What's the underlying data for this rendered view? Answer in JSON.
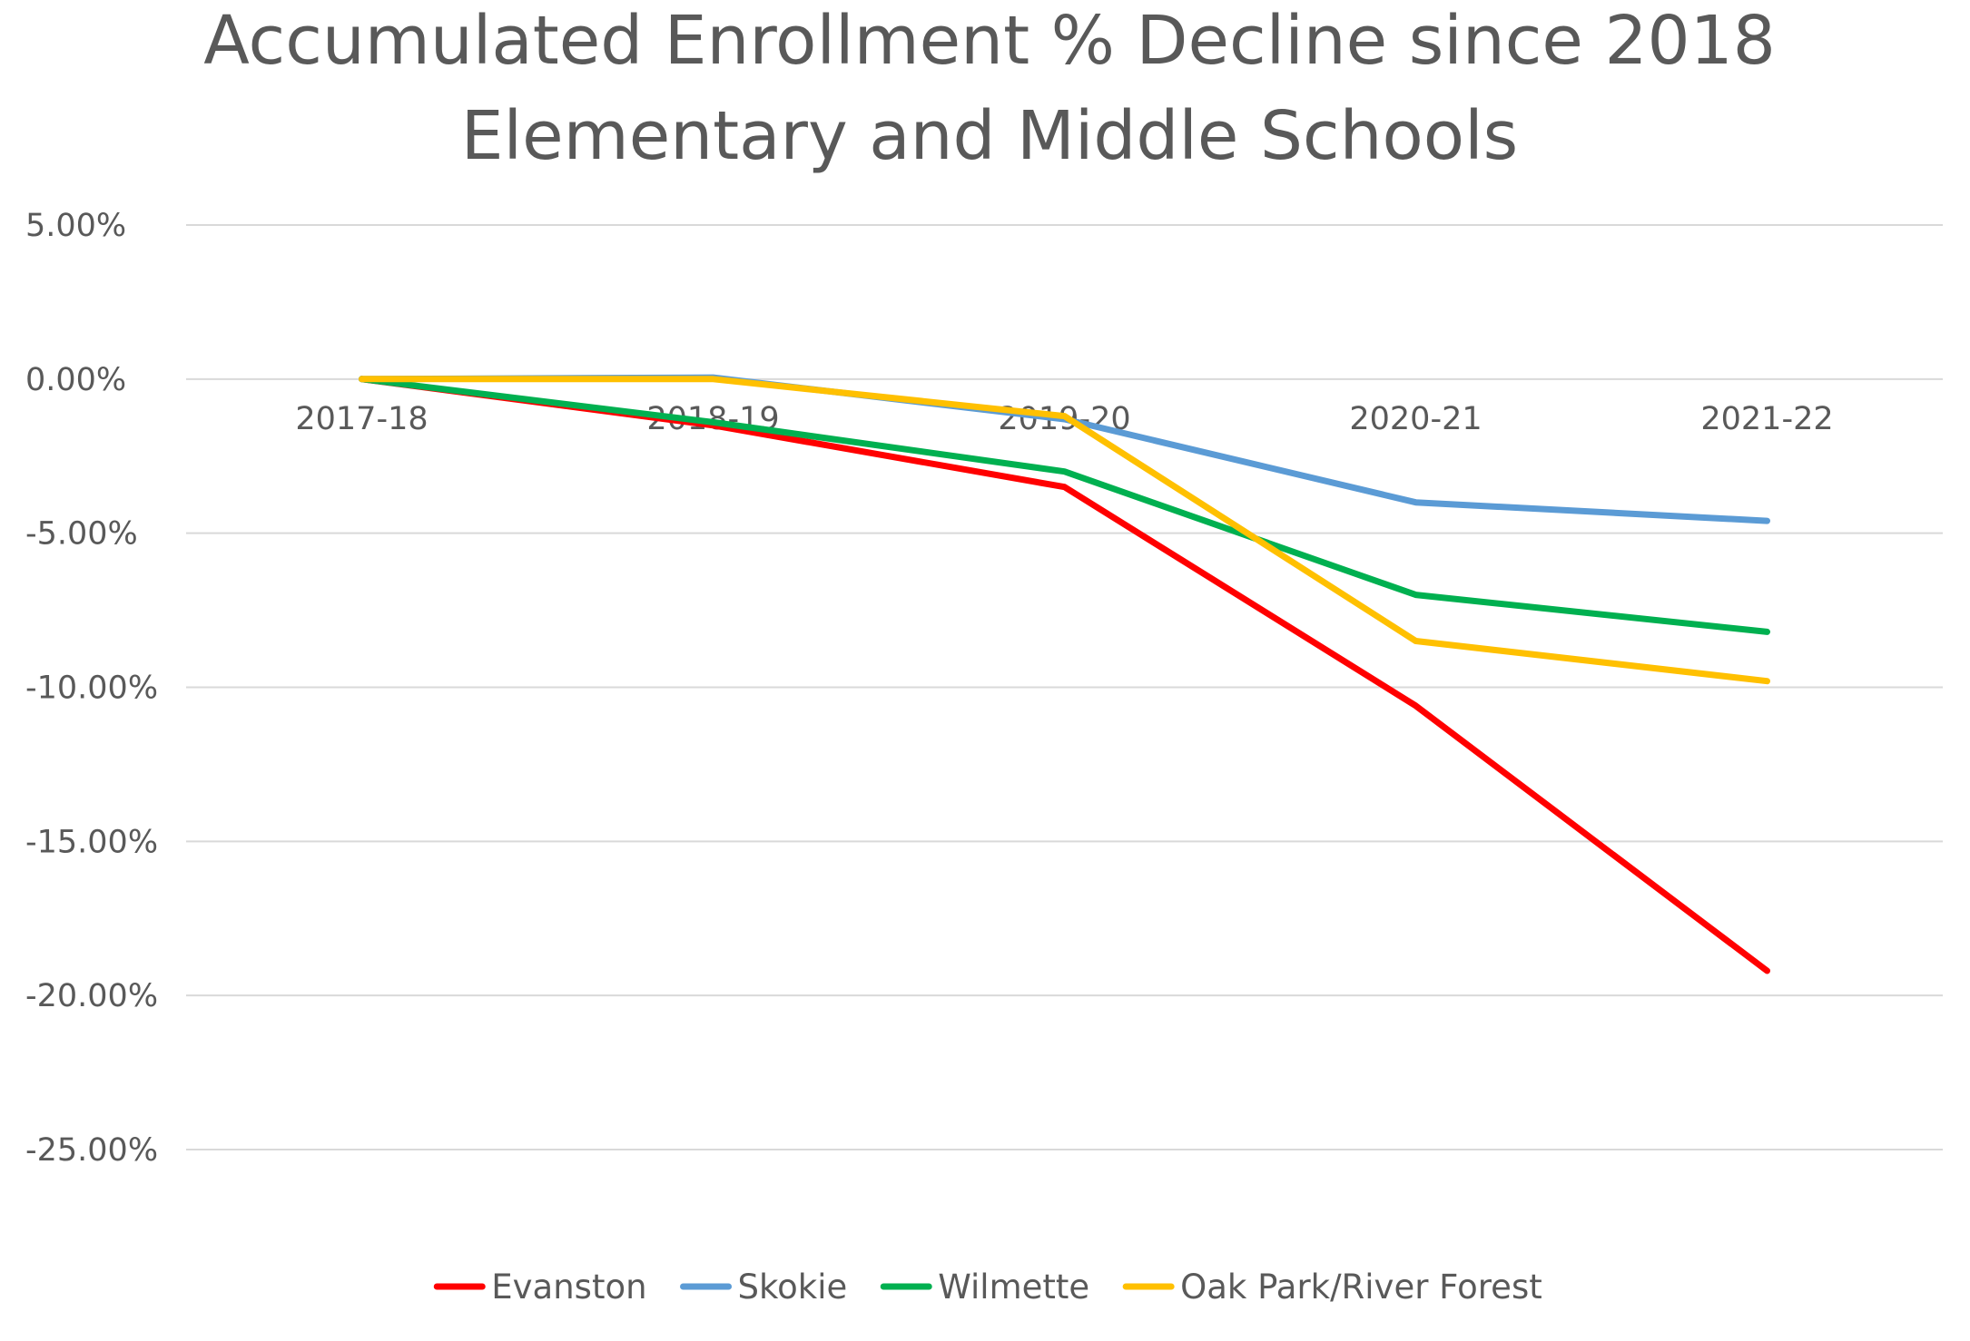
{
  "chart_data": {
    "type": "line",
    "title": "Accumulated Enrollment % Decline since 2018",
    "subtitle": "Elementary and Middle Schools",
    "xlabel": "",
    "ylabel": "",
    "categories": [
      "2017-18",
      "2018-19",
      "2019-20",
      "2020-21",
      "2021-22"
    ],
    "ylim": [
      -25,
      5
    ],
    "yticks": [
      5,
      0,
      -5,
      -10,
      -15,
      -20,
      -25
    ],
    "ytick_labels": [
      "5.00%",
      "0.00%",
      "-5.00%",
      "-10.00%",
      "-15.00%",
      "-20.00%",
      "-25.00%"
    ],
    "grid": true,
    "legend_position": "bottom",
    "series": [
      {
        "name": "Evanston",
        "color": "#ff0000",
        "values": [
          0,
          -1.5,
          -3.5,
          -10.6,
          -19.2
        ]
      },
      {
        "name": "Skokie",
        "color": "#5b9bd5",
        "values": [
          0,
          0.05,
          -1.3,
          -4.0,
          -4.6
        ]
      },
      {
        "name": "Wilmette",
        "color": "#00b050",
        "values": [
          0,
          -1.4,
          -3.0,
          -7.0,
          -8.2
        ]
      },
      {
        "name": "Oak Park/River Forest",
        "color": "#ffc000",
        "values": [
          0,
          0,
          -1.2,
          -8.5,
          -9.8
        ]
      }
    ]
  }
}
